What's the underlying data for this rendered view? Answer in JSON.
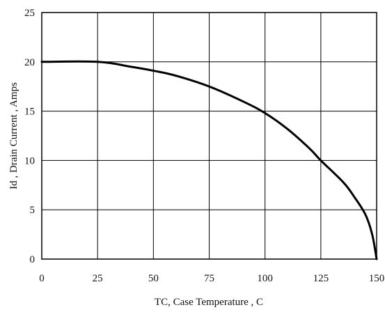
{
  "chart_data": {
    "type": "line",
    "title": "",
    "xlabel": "TC, Case Temperature , C",
    "ylabel": "Id , Drain Current , Amps",
    "xlim": [
      0,
      150
    ],
    "ylim": [
      0,
      25
    ],
    "x_ticks": [
      0,
      25,
      50,
      75,
      100,
      125,
      150
    ],
    "y_ticks": [
      0,
      5,
      10,
      15,
      20,
      25
    ],
    "x_tick_labels": [
      "0",
      "25",
      "50",
      "75",
      "100",
      "125",
      "150"
    ],
    "y_tick_labels": [
      "0",
      "5",
      "10",
      "15",
      "20",
      "25"
    ],
    "grid": true,
    "legend": "none",
    "series": [
      {
        "x": [
          0,
          25,
          40,
          50,
          60,
          75,
          90,
          100,
          110,
          120,
          125,
          135,
          140,
          145,
          148,
          150
        ],
        "y": [
          20,
          20,
          19.5,
          19.1,
          18.6,
          17.5,
          16,
          14.8,
          13.2,
          11.2,
          10,
          7.8,
          6.3,
          4.5,
          2.5,
          0
        ]
      }
    ],
    "colors": {
      "line": "#000000",
      "grid": "#000000",
      "axes": "#000000"
    }
  }
}
